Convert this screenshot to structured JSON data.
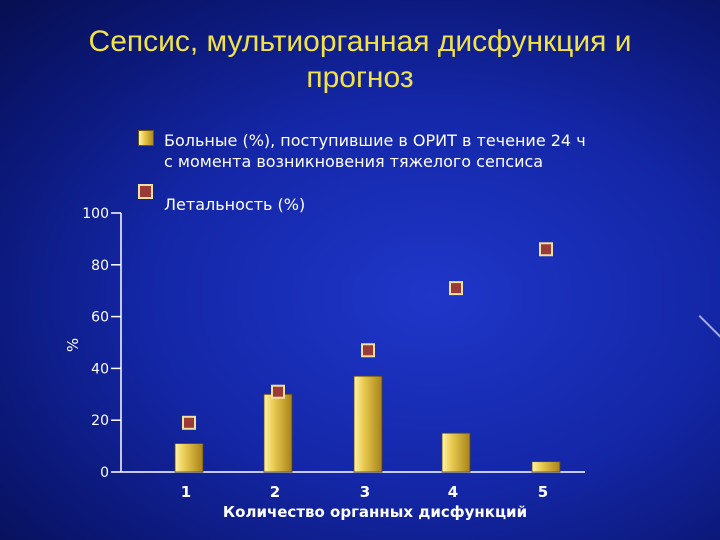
{
  "title": {
    "line1": "Сепсис, мультиорганная дисфункция и",
    "line2": "прогноз"
  },
  "legend": {
    "item1_line1": "Больные (%), поступившие в ОРИТ в течение 24 ч",
    "item1_line2": "с момента возникновения тяжелого сепсиса",
    "item2": "Леталь­ность (%)"
  },
  "chart_data": {
    "type": "bar",
    "categories": [
      "1",
      "2",
      "3",
      "4",
      "5"
    ],
    "series": [
      {
        "name": "Больные (%), поступившие в ОРИТ в течение 24 ч с момента возникновения тяжелого сепсиса",
        "kind": "bar",
        "color": "#d8b940",
        "values": [
          11,
          30,
          37,
          15,
          4
        ]
      },
      {
        "name": "Летальность (%)",
        "kind": "marker",
        "color": "#9b3a38",
        "values": [
          19,
          31,
          47,
          71,
          86
        ]
      }
    ],
    "xlabel": "Количество органных дисфункций",
    "ylabel": "%",
    "yticks": [
      "0",
      "20",
      "40",
      "60",
      "80",
      "100"
    ],
    "ylim": [
      0,
      100
    ],
    "grid": false,
    "legend_position": "top"
  }
}
